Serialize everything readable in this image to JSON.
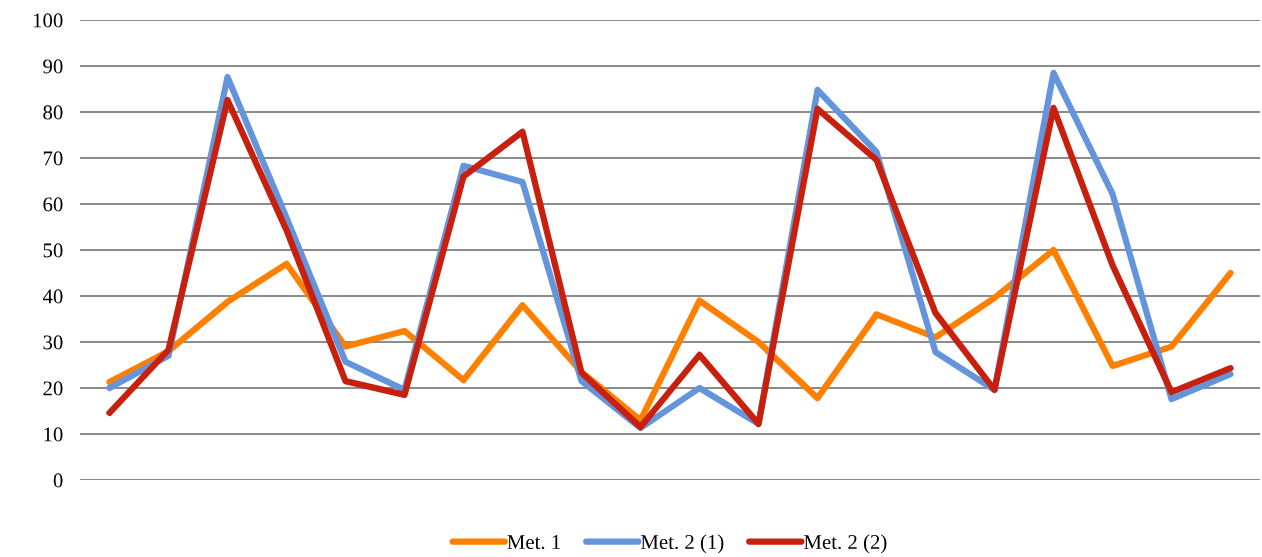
{
  "chart_data": {
    "type": "line",
    "categories": [
      null,
      null,
      null,
      null,
      null,
      null,
      null,
      null,
      null,
      null,
      null,
      null,
      null,
      null,
      null,
      null,
      null,
      null,
      null,
      null
    ],
    "series": [
      {
        "name": "Met. 1",
        "color": "#ff8000",
        "values": [
          21.3,
          28,
          38.7,
          47,
          29,
          32.4,
          21.7,
          38,
          23.5,
          13,
          39,
          30,
          17.8,
          36,
          31,
          39.6,
          50,
          24.8,
          29,
          45
        ]
      },
      {
        "name": "Met. 2 (1)",
        "color": "#6495dc",
        "values": [
          20,
          27,
          87.6,
          57,
          25.7,
          19.6,
          68.3,
          64.8,
          21.5,
          11.3,
          20,
          12.2,
          84.8,
          71.3,
          27.8,
          19.6,
          88.5,
          62.2,
          17.6,
          23
        ]
      },
      {
        "name": "Met. 2 (2)",
        "color": "#c8200e",
        "values": [
          14.6,
          28.3,
          82.6,
          54.3,
          21.5,
          18.5,
          66,
          75.7,
          23.3,
          11.5,
          27.2,
          12.2,
          80.7,
          69.6,
          36.3,
          19.6,
          80.9,
          46.7,
          19.1,
          24.3
        ]
      }
    ],
    "ylim": [
      0,
      100
    ],
    "yticks": [
      0,
      10,
      20,
      30,
      40,
      50,
      60,
      70,
      80,
      90,
      100
    ],
    "grid": "y",
    "legend": "bottom",
    "line_style": "solid",
    "marker": "none"
  }
}
